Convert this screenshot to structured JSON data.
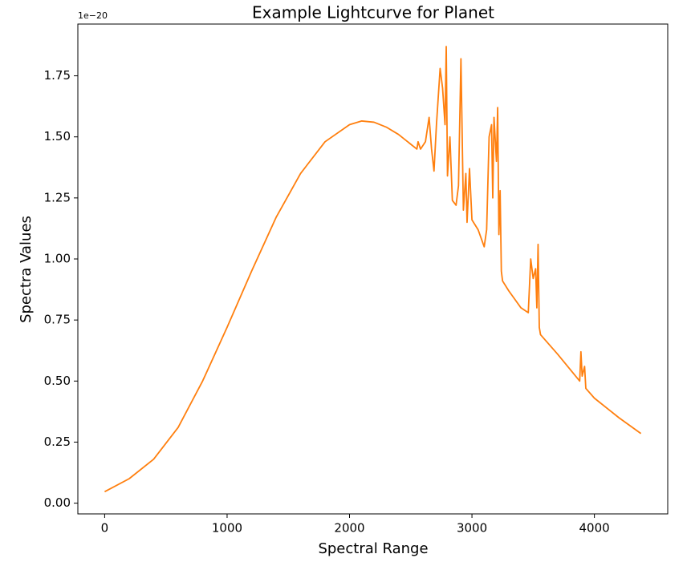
{
  "chart_data": {
    "type": "line",
    "title": "Example Lightcurve for Planet",
    "xlabel": "Spectral Range",
    "ylabel": "Spectra Values",
    "offset_label": "1e−20",
    "color": "#ff7f0e",
    "x": [
      0,
      200,
      400,
      600,
      800,
      1000,
      1200,
      1400,
      1600,
      1800,
      2000,
      2100,
      2200,
      2300,
      2400,
      2500,
      2550,
      2560,
      2580,
      2620,
      2650,
      2670,
      2690,
      2710,
      2740,
      2760,
      2780,
      2790,
      2800,
      2820,
      2840,
      2870,
      2890,
      2910,
      2930,
      2950,
      2960,
      2980,
      3000,
      3050,
      3100,
      3120,
      3140,
      3160,
      3170,
      3180,
      3200,
      3210,
      3220,
      3230,
      3240,
      3250,
      3300,
      3400,
      3460,
      3480,
      3500,
      3520,
      3530,
      3540,
      3550,
      3560,
      3700,
      3880,
      3890,
      3900,
      3920,
      3930,
      4000,
      4200,
      4380
    ],
    "values": [
      0.047,
      0.1,
      0.18,
      0.31,
      0.5,
      0.72,
      0.95,
      1.17,
      1.35,
      1.48,
      1.55,
      1.565,
      1.56,
      1.54,
      1.51,
      1.47,
      1.45,
      1.48,
      1.45,
      1.48,
      1.58,
      1.45,
      1.36,
      1.55,
      1.78,
      1.7,
      1.55,
      1.87,
      1.34,
      1.5,
      1.24,
      1.22,
      1.3,
      1.82,
      1.2,
      1.35,
      1.15,
      1.37,
      1.16,
      1.12,
      1.05,
      1.12,
      1.5,
      1.55,
      1.25,
      1.58,
      1.4,
      1.62,
      1.1,
      1.28,
      0.95,
      0.91,
      0.87,
      0.8,
      0.78,
      1.0,
      0.92,
      0.96,
      0.8,
      1.06,
      0.72,
      0.69,
      0.61,
      0.5,
      0.62,
      0.52,
      0.56,
      0.47,
      0.43,
      0.35,
      0.285
    ],
    "xlim": [
      -219,
      4599
    ],
    "ylim": [
      -0.044,
      1.962
    ],
    "xticks": [
      0,
      1000,
      2000,
      3000,
      4000
    ],
    "yticks": [
      {
        "value": 0,
        "label": "0.00"
      },
      0.25,
      {
        "value": 0.5,
        "label": "0.50"
      },
      0.75,
      {
        "value": 1,
        "label": "1.00"
      },
      1.25,
      {
        "value": 1.5,
        "label": "1.50"
      },
      1.75
    ]
  }
}
